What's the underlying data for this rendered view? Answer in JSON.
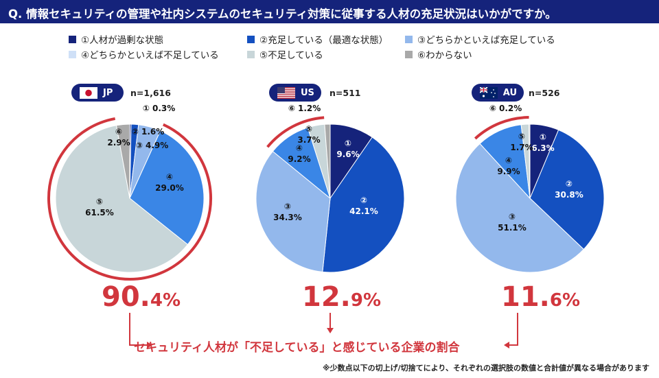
{
  "title": "Q. 情報セキュリティの管理や社内システムのセキュリティ対策に従事する人材の充足状況はいかがですか。",
  "legend": [
    {
      "label": "①人材が過剰な状態",
      "color": "#15237b"
    },
    {
      "label": "②充足している（最適な状態）",
      "color": "#1450c0"
    },
    {
      "label": "③どちらかといえば充足している",
      "color": "#93b8ec"
    },
    {
      "label": "④どちらかといえば不足している",
      "color": "#3a86e6"
    },
    {
      "label": "⑤不足している",
      "color": "#c8d6d9"
    },
    {
      "label": "⑥わからない",
      "color": "#a9a9a9"
    }
  ],
  "chart_data": [
    {
      "type": "pie",
      "country": "JP",
      "n": "n=1,616",
      "labels": [
        "①",
        "②",
        "③",
        "④",
        "⑤",
        "⑥"
      ],
      "values": [
        0.3,
        1.6,
        4.9,
        29.0,
        61.5,
        2.9
      ],
      "value_labels": [
        "0.3%",
        "1.6%",
        "4.9%",
        "29.0%",
        "61.5%",
        "2.9%"
      ],
      "shortage_total_int": "90.",
      "shortage_total_dec": "4%"
    },
    {
      "type": "pie",
      "country": "US",
      "n": "n=511",
      "labels": [
        "①",
        "②",
        "③",
        "④",
        "⑤",
        "⑥"
      ],
      "values": [
        9.6,
        42.1,
        34.3,
        9.2,
        3.7,
        1.2
      ],
      "value_labels": [
        "9.6%",
        "42.1%",
        "34.3%",
        "9.2%",
        "3.7%",
        "1.2%"
      ],
      "shortage_total_int": "12.",
      "shortage_total_dec": "9%"
    },
    {
      "type": "pie",
      "country": "AU",
      "n": "n=526",
      "labels": [
        "①",
        "②",
        "③",
        "④",
        "⑤",
        "⑥"
      ],
      "values": [
        6.3,
        30.8,
        51.1,
        9.9,
        1.7,
        0.2
      ],
      "value_labels": [
        "6.3%",
        "30.8%",
        "51.1%",
        "9.9%",
        "1.7%",
        "0.2%"
      ],
      "shortage_total_int": "11.",
      "shortage_total_dec": "6%"
    }
  ],
  "caption": "セキュリティ人材が「不足している」と感じている企業の割合",
  "footnote": "※少数点以下の切上げ/切捨てにより、それぞれの選択肢の数値と合計値が異なる場合があります"
}
